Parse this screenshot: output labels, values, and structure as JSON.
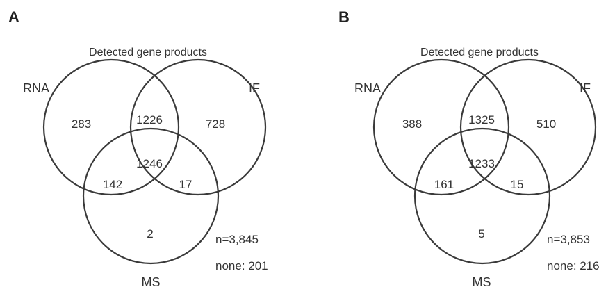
{
  "panels": [
    {
      "label": "A",
      "title": "Detected gene products",
      "sets": {
        "rna": "RNA",
        "if": "IF",
        "ms": "MS"
      },
      "regions": {
        "rna_only": "283",
        "rna_if": "1226",
        "if_only": "728",
        "rna_if_ms": "1246",
        "rna_ms": "142",
        "if_ms": "17",
        "ms_only": "2"
      },
      "n_total": "n=3,845",
      "none": "none: 201"
    },
    {
      "label": "B",
      "title": "Detected gene products",
      "sets": {
        "rna": "RNA",
        "if": "IF",
        "ms": "MS"
      },
      "regions": {
        "rna_only": "388",
        "rna_if": "1325",
        "if_only": "510",
        "rna_if_ms": "1233",
        "rna_ms": "161",
        "if_ms": "15",
        "ms_only": "5"
      },
      "n_total": "n=3,853",
      "none": "none: 216"
    }
  ]
}
